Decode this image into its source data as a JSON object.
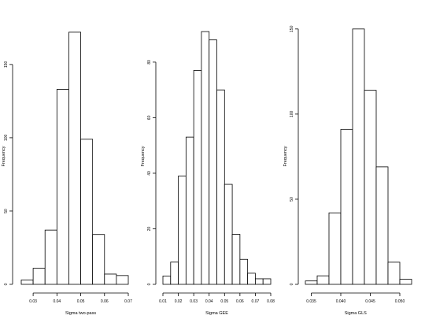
{
  "chart_data": [
    {
      "type": "bar",
      "histogram": true,
      "xlabel": "Sigma two-pass",
      "ylabel": "Frequency",
      "bin_edges": [
        0.025,
        0.03,
        0.035,
        0.04,
        0.045,
        0.05,
        0.055,
        0.06,
        0.065,
        0.07
      ],
      "values": [
        3,
        11,
        37,
        133,
        172,
        99,
        34,
        7,
        6
      ],
      "xticks": [
        "0.03",
        "0.04",
        "0.05",
        "0.06",
        "0.07"
      ],
      "xtick_values": [
        0.03,
        0.04,
        0.05,
        0.06,
        0.07
      ],
      "yticks": [
        "0",
        "50",
        "100",
        "150"
      ],
      "ytick_values": [
        0,
        50,
        100,
        150
      ],
      "xlim": [
        0.025,
        0.07
      ],
      "ylim": [
        0,
        180
      ],
      "grid": false
    },
    {
      "type": "bar",
      "histogram": true,
      "xlabel": "Sigma GEE",
      "ylabel": "Frequency",
      "bin_edges": [
        0.01,
        0.015,
        0.02,
        0.025,
        0.03,
        0.035,
        0.04,
        0.045,
        0.05,
        0.055,
        0.06,
        0.065,
        0.07,
        0.075,
        0.08
      ],
      "values": [
        3,
        8,
        39,
        53,
        77,
        91,
        88,
        70,
        36,
        18,
        9,
        4,
        2,
        2
      ],
      "xticks": [
        "0.01",
        "0.02",
        "0.03",
        "0.04",
        "0.05",
        "0.06",
        "0.07",
        "0.08"
      ],
      "xtick_values": [
        0.01,
        0.02,
        0.03,
        0.04,
        0.05,
        0.06,
        0.07,
        0.08
      ],
      "yticks": [
        "0",
        "20",
        "40",
        "60",
        "80"
      ],
      "ytick_values": [
        0,
        20,
        40,
        60,
        80
      ],
      "xlim": [
        0.01,
        0.08
      ],
      "ylim": [
        0,
        95
      ],
      "grid": false
    },
    {
      "type": "bar",
      "histogram": true,
      "xlabel": "Sigma GLS",
      "ylabel": "Frequency",
      "bin_edges": [
        0.034,
        0.036,
        0.038,
        0.04,
        0.042,
        0.044,
        0.046,
        0.048,
        0.05,
        0.052
      ],
      "values": [
        2,
        5,
        42,
        91,
        150,
        114,
        69,
        13,
        3
      ],
      "xticks": [
        "0.035",
        "0.040",
        "0.045",
        "0.050"
      ],
      "xtick_values": [
        0.035,
        0.04,
        0.045,
        0.05
      ],
      "yticks": [
        "0",
        "50",
        "100",
        "150"
      ],
      "ytick_values": [
        0,
        50,
        100,
        150
      ],
      "xlim": [
        0.034,
        0.052
      ],
      "ylim": [
        0,
        155
      ],
      "grid": false
    }
  ]
}
